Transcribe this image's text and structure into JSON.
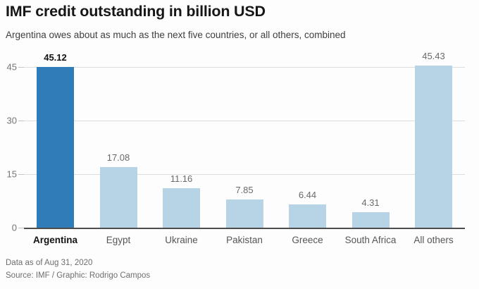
{
  "header": {
    "title": "IMF credit outstanding in billion USD",
    "subtitle": "Argentina owes about as much as the next five countries, or all others, combined"
  },
  "chart_data": {
    "type": "bar",
    "title": "IMF credit outstanding in billion USD",
    "subtitle": "Argentina owes about as much as the next five countries, or all others, combined",
    "categories": [
      "Argentina",
      "Egypt",
      "Ukraine",
      "Pakistan",
      "Greece",
      "South Africa",
      "All others"
    ],
    "values": [
      45.12,
      17.08,
      11.16,
      7.85,
      6.44,
      4.31,
      45.43
    ],
    "value_labels": [
      "45.12",
      "17.08",
      "11.16",
      "7.85",
      "6.44",
      "4.31",
      "45.43"
    ],
    "highlight_index": 0,
    "xlabel": "",
    "ylabel": "",
    "y_ticks": [
      0,
      15,
      30,
      45
    ],
    "ylim": [
      0,
      46.5
    ],
    "grid": true,
    "legend": "none",
    "colors": {
      "highlight_bar": "#2F7CB8",
      "bar": "#B7D3E6",
      "gridline": "#DDDDDD",
      "tickmark": "#C4C4C4",
      "axis_line": "#4D4D4D",
      "tick_label": "#757575",
      "value_label": "#6A6A6A",
      "category_label": "#565656",
      "highlight_text": "#121212"
    }
  },
  "footer": {
    "note": "Data as of Aug 31, 2020",
    "source": "Source: IMF / Graphic: Rodrigo Campos"
  }
}
